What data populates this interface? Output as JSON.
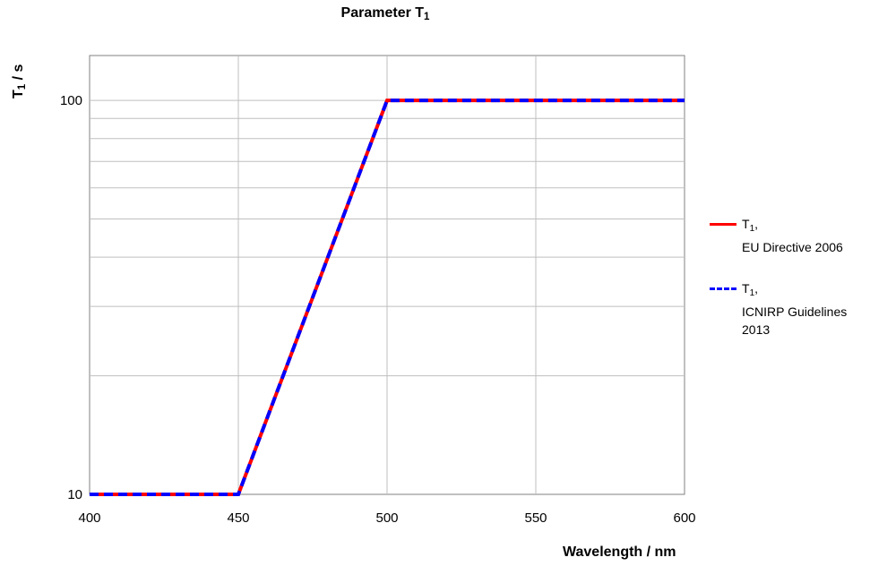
{
  "chart_data": {
    "type": "line",
    "title_main": "Parameter T",
    "title_sub": "1",
    "ylabel_main": "T",
    "ylabel_sub": "1",
    "ylabel_unit": " / s",
    "xlabel": "Wavelength / nm",
    "xlim": [
      400,
      600
    ],
    "ylim": [
      10,
      130
    ],
    "yscale": "log",
    "xticks": [
      400,
      450,
      500,
      550,
      600
    ],
    "yticks": [
      10,
      100
    ],
    "grid": true,
    "legend_position": "right",
    "series": [
      {
        "legend_main": "T",
        "legend_sub": "1",
        "legend_suffix": ",",
        "legend_source": "EU Directive 2006",
        "style": "solid",
        "color": "#ff0000",
        "x": [
          400,
          450,
          500,
          600
        ],
        "y": [
          10,
          10,
          100,
          100
        ]
      },
      {
        "legend_main": "T",
        "legend_sub": "1",
        "legend_suffix": ",",
        "legend_source": "ICNIRP Guidelines 2013",
        "style": "dashed",
        "color": "#0000ff",
        "x": [
          400,
          450,
          500,
          600
        ],
        "y": [
          10,
          10,
          100,
          100
        ]
      }
    ]
  }
}
